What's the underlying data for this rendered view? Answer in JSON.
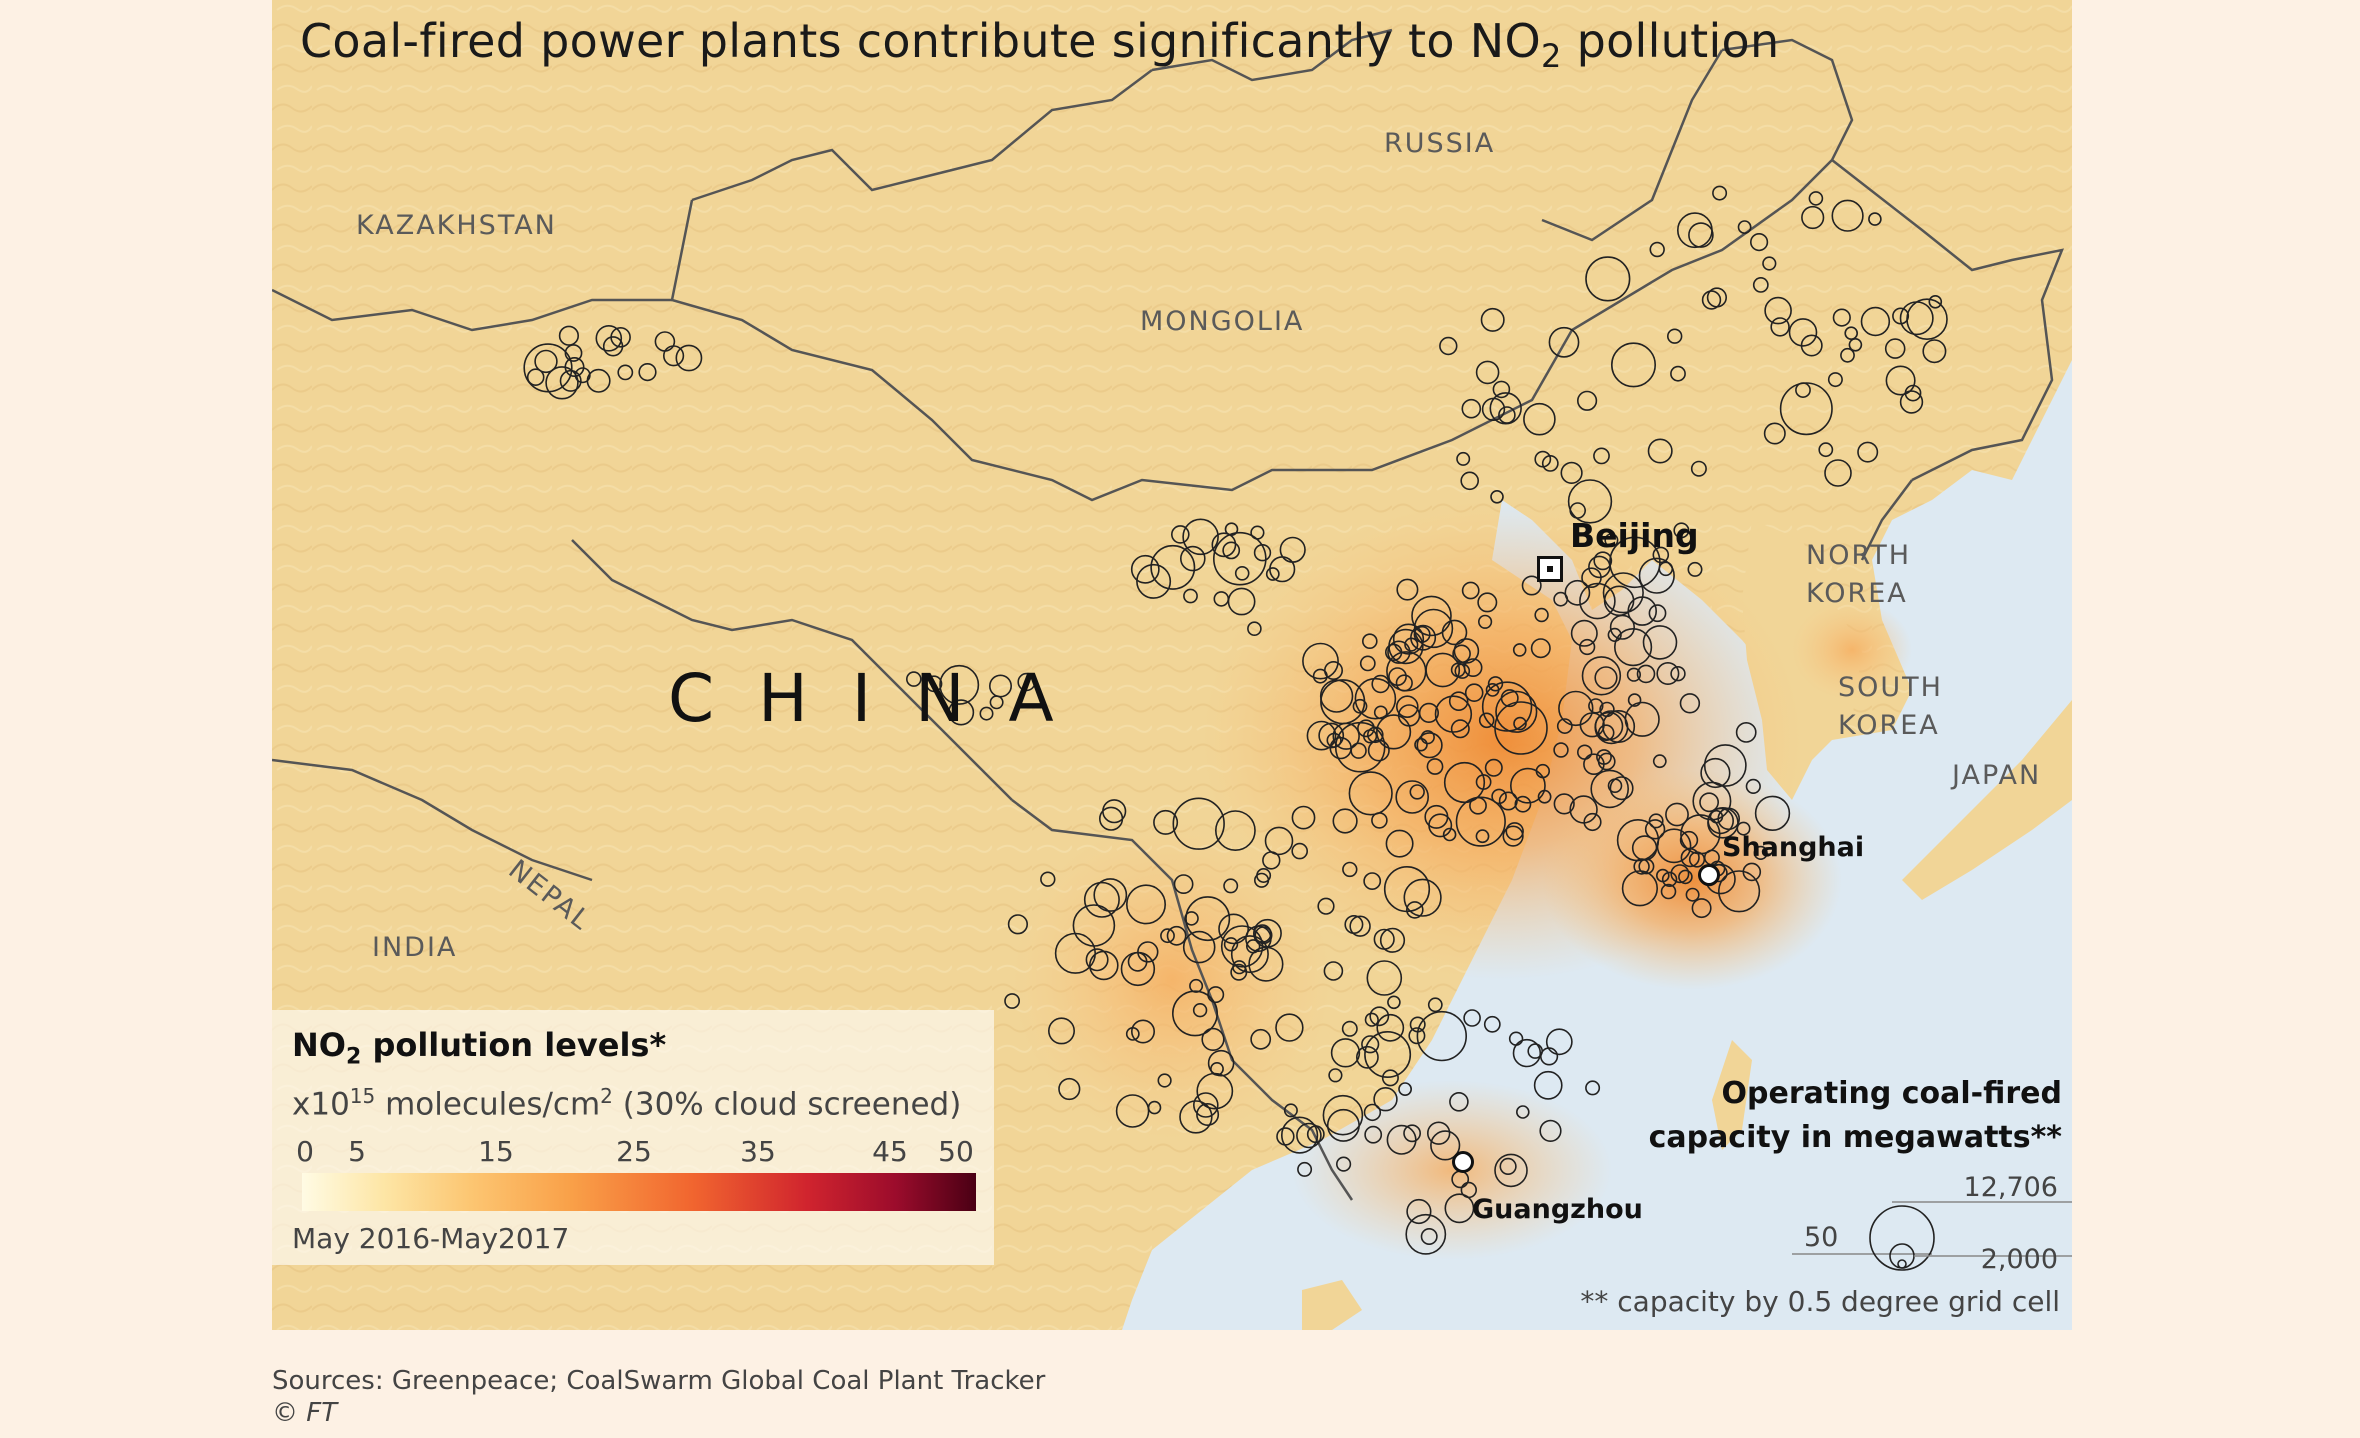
{
  "title": {
    "pre": "Coal-fired power plants contribute significantly to NO",
    "sub": "2",
    "post": " pollution"
  },
  "countries": {
    "kazakhstan": "KAZAKHSTAN",
    "russia": "RUSSIA",
    "mongolia": "MONGOLIA",
    "china": "CHINA",
    "nepal": "NEPAL",
    "india": "INDIA",
    "north_korea_1": "NORTH",
    "north_korea_2": "KOREA",
    "south_korea_1": "SOUTH",
    "south_korea_2": "KOREA",
    "japan": "JAPAN"
  },
  "cities": {
    "beijing": "Beijing",
    "shanghai": "Shanghai",
    "guangzhou": "Guangzhou"
  },
  "legend": {
    "title_pre": "NO",
    "title_sub": "2",
    "title_post": " pollution levels*",
    "unit_pre": "x10",
    "unit_exp": "15",
    "unit_mid": " molecules/cm",
    "unit_exp2": "2",
    "unit_post": " (30% cloud screened)",
    "ticks": [
      "0",
      "5",
      "15",
      "25",
      "35",
      "45",
      "50"
    ],
    "period": "May 2016-May2017"
  },
  "capacity_legend": {
    "title_1": "Operating coal-fired",
    "title_2": "capacity in megawatts**",
    "max": "12,706",
    "min": "50",
    "mid": "2,000",
    "note": "** capacity by 0.5 degree grid cell"
  },
  "sources": "Sources: Greenpeace; CoalSwarm Global Coal Plant Tracker",
  "credit": "© FT",
  "colors": {
    "page_bg": "#fdf1e4",
    "land": "#f1d597",
    "sea": "#dde9f2",
    "hotspot": "#e8903a"
  }
}
